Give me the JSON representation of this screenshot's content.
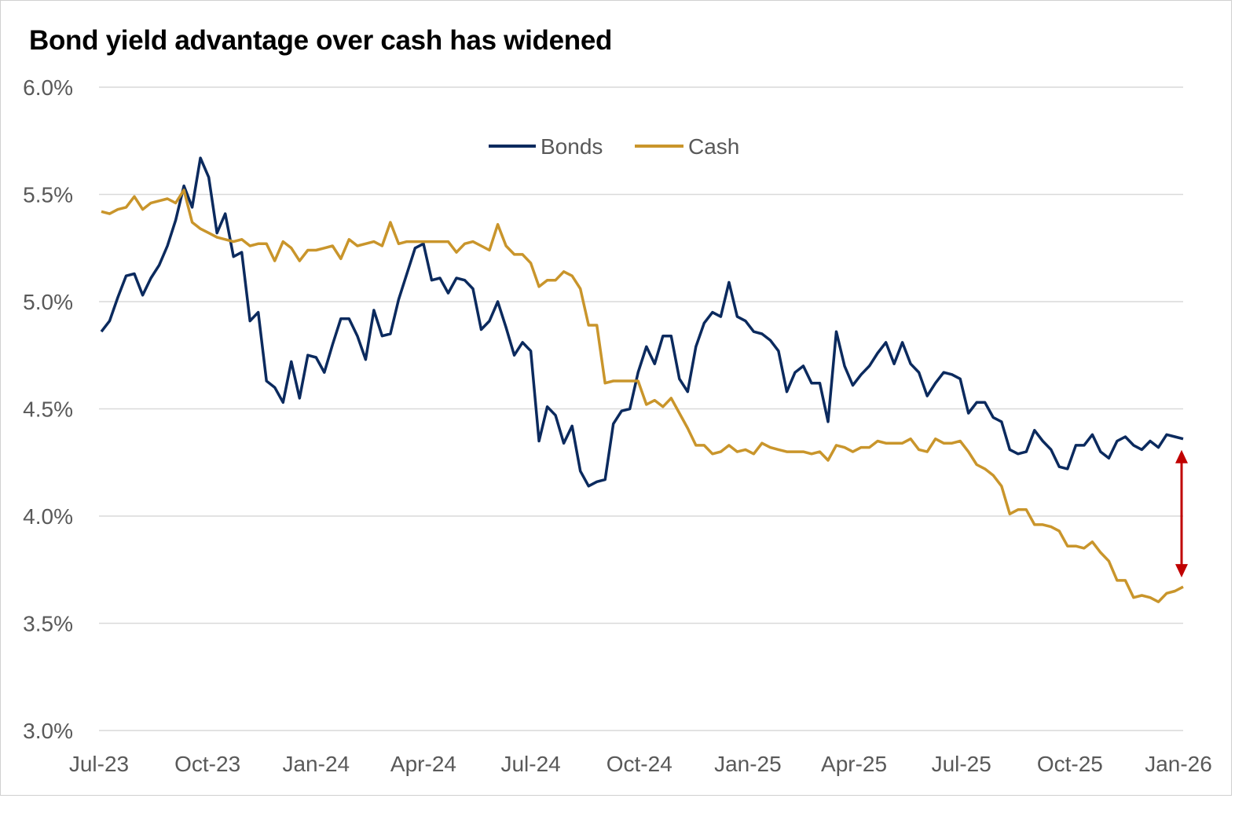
{
  "chart_data": {
    "type": "line",
    "title": "Bond yield advantage over cash has widened",
    "xlabel": "",
    "ylabel": "",
    "ylim": [
      3.0,
      6.0
    ],
    "y_ticks": [
      "3.0%",
      "3.5%",
      "4.0%",
      "4.5%",
      "5.0%",
      "5.5%",
      "6.0%"
    ],
    "y_tick_values": [
      3.0,
      3.5,
      4.0,
      4.5,
      5.0,
      5.5,
      6.0
    ],
    "x_ticks": [
      "Jul-23",
      "Oct-23",
      "Jan-24",
      "Apr-24",
      "Jul-24",
      "Oct-24",
      "Jan-25",
      "Apr-25",
      "Jul-25",
      "Oct-25",
      "Jan-26"
    ],
    "x_tick_dates": [
      "2023-07-01",
      "2023-10-01",
      "2024-01-01",
      "2024-04-01",
      "2024-07-01",
      "2024-10-01",
      "2025-01-01",
      "2025-04-01",
      "2025-07-01",
      "2025-10-01",
      "2026-01-01"
    ],
    "grid": "horizontal",
    "legend_position": "top-center",
    "dates": [
      "2023-07-03",
      "2023-07-10",
      "2023-07-17",
      "2023-07-24",
      "2023-07-31",
      "2023-08-07",
      "2023-08-14",
      "2023-08-21",
      "2023-08-28",
      "2023-09-04",
      "2023-09-11",
      "2023-09-18",
      "2023-09-25",
      "2023-10-02",
      "2023-10-09",
      "2023-10-16",
      "2023-10-23",
      "2023-10-30",
      "2023-11-06",
      "2023-11-13",
      "2023-11-20",
      "2023-11-27",
      "2023-12-04",
      "2023-12-11",
      "2023-12-18",
      "2023-12-25",
      "2024-01-01",
      "2024-01-08",
      "2024-01-15",
      "2024-01-22",
      "2024-01-29",
      "2024-02-05",
      "2024-02-12",
      "2024-02-19",
      "2024-02-26",
      "2024-03-04",
      "2024-03-11",
      "2024-03-18",
      "2024-03-25",
      "2024-04-01",
      "2024-04-08",
      "2024-04-15",
      "2024-04-22",
      "2024-04-29",
      "2024-05-06",
      "2024-05-13",
      "2024-05-20",
      "2024-05-27",
      "2024-06-03",
      "2024-06-10",
      "2024-06-17",
      "2024-06-24",
      "2024-07-01",
      "2024-07-08",
      "2024-07-15",
      "2024-07-22",
      "2024-07-29",
      "2024-08-05",
      "2024-08-12",
      "2024-08-19",
      "2024-08-26",
      "2024-09-02",
      "2024-09-09",
      "2024-09-16",
      "2024-09-23",
      "2024-09-30",
      "2024-10-07",
      "2024-10-14",
      "2024-10-21",
      "2024-10-28",
      "2024-11-04",
      "2024-11-11",
      "2024-11-18",
      "2024-11-25",
      "2024-12-02",
      "2024-12-09",
      "2024-12-16",
      "2024-12-23",
      "2024-12-30",
      "2025-01-06",
      "2025-01-13",
      "2025-01-20",
      "2025-01-27",
      "2025-02-03",
      "2025-02-10",
      "2025-02-17",
      "2025-02-24",
      "2025-03-03",
      "2025-03-10",
      "2025-03-17",
      "2025-03-24",
      "2025-03-31",
      "2025-04-07",
      "2025-04-14",
      "2025-04-21",
      "2025-04-28",
      "2025-05-05",
      "2025-05-12",
      "2025-05-19",
      "2025-05-26",
      "2025-06-02",
      "2025-06-09",
      "2025-06-16",
      "2025-06-23",
      "2025-06-30",
      "2025-07-07",
      "2025-07-14",
      "2025-07-21",
      "2025-07-28",
      "2025-08-04",
      "2025-08-11",
      "2025-08-18",
      "2025-08-25",
      "2025-09-01",
      "2025-09-08",
      "2025-09-15",
      "2025-09-22",
      "2025-09-29",
      "2025-10-06",
      "2025-10-13",
      "2025-10-20",
      "2025-10-27",
      "2025-11-03",
      "2025-11-10",
      "2025-11-17",
      "2025-11-24",
      "2025-12-01",
      "2025-12-08",
      "2025-12-15",
      "2025-12-22",
      "2025-12-29",
      "2026-01-05"
    ],
    "series": [
      {
        "name": "Bonds",
        "color": "#0b2a5e",
        "values": [
          4.86,
          4.91,
          5.02,
          5.12,
          5.13,
          5.03,
          5.11,
          5.17,
          5.26,
          5.38,
          5.54,
          5.44,
          5.67,
          5.58,
          5.32,
          5.41,
          5.21,
          5.23,
          4.91,
          4.95,
          4.63,
          4.6,
          4.53,
          4.72,
          4.55,
          4.75,
          4.74,
          4.67,
          4.8,
          4.92,
          4.92,
          4.84,
          4.73,
          4.96,
          4.84,
          4.85,
          5.01,
          5.13,
          5.25,
          5.27,
          5.1,
          5.11,
          5.04,
          5.11,
          5.1,
          5.06,
          4.87,
          4.91,
          5.0,
          4.88,
          4.75,
          4.81,
          4.77,
          4.35,
          4.51,
          4.47,
          4.34,
          4.42,
          4.21,
          4.14,
          4.16,
          4.17,
          4.43,
          4.49,
          4.5,
          4.67,
          4.79,
          4.71,
          4.84,
          4.84,
          4.64,
          4.58,
          4.79,
          4.9,
          4.95,
          4.93,
          5.09,
          4.93,
          4.91,
          4.86,
          4.85,
          4.82,
          4.77,
          4.58,
          4.67,
          4.7,
          4.62,
          4.62,
          4.44,
          4.86,
          4.7,
          4.61,
          4.66,
          4.7,
          4.76,
          4.81,
          4.71,
          4.81,
          4.71,
          4.67,
          4.56,
          4.62,
          4.67,
          4.66,
          4.64,
          4.48,
          4.53,
          4.53,
          4.46,
          4.44,
          4.31,
          4.29,
          4.3,
          4.4,
          4.35,
          4.31,
          4.23,
          4.22,
          4.33,
          4.33,
          4.38,
          4.3,
          4.27,
          4.35,
          4.37,
          4.33,
          4.31,
          4.35,
          4.32,
          4.38,
          4.37,
          4.36
        ]
      },
      {
        "name": "Cash",
        "color": "#c9952b",
        "values": [
          5.42,
          5.41,
          5.43,
          5.44,
          5.49,
          5.43,
          5.46,
          5.47,
          5.48,
          5.46,
          5.52,
          5.37,
          5.34,
          5.32,
          5.3,
          5.29,
          5.28,
          5.29,
          5.26,
          5.27,
          5.27,
          5.19,
          5.28,
          5.25,
          5.19,
          5.24,
          5.24,
          5.25,
          5.26,
          5.2,
          5.29,
          5.26,
          5.27,
          5.28,
          5.26,
          5.37,
          5.27,
          5.28,
          5.28,
          5.28,
          5.28,
          5.28,
          5.28,
          5.23,
          5.27,
          5.28,
          5.26,
          5.24,
          5.36,
          5.26,
          5.22,
          5.22,
          5.18,
          5.07,
          5.1,
          5.1,
          5.14,
          5.12,
          5.06,
          4.89,
          4.89,
          4.62,
          4.63,
          4.63,
          4.63,
          4.63,
          4.52,
          4.54,
          4.51,
          4.55,
          4.48,
          4.41,
          4.33,
          4.33,
          4.29,
          4.3,
          4.33,
          4.3,
          4.31,
          4.29,
          4.34,
          4.32,
          4.31,
          4.3,
          4.3,
          4.3,
          4.29,
          4.3,
          4.26,
          4.33,
          4.32,
          4.3,
          4.32,
          4.32,
          4.35,
          4.34,
          4.34,
          4.34,
          4.36,
          4.31,
          4.3,
          4.36,
          4.34,
          4.34,
          4.35,
          4.3,
          4.24,
          4.22,
          4.19,
          4.14,
          4.01,
          4.03,
          4.03,
          3.96,
          3.96,
          3.95,
          3.93,
          3.86,
          3.86,
          3.85,
          3.88,
          3.83,
          3.79,
          3.7,
          3.7,
          3.62,
          3.63,
          3.62,
          3.6,
          3.64,
          3.65,
          3.67
        ]
      }
    ],
    "annotation": {
      "type": "double-arrow",
      "color": "#c00000",
      "from_series": "Bonds",
      "to_series": "Cash",
      "at": "latest"
    }
  }
}
